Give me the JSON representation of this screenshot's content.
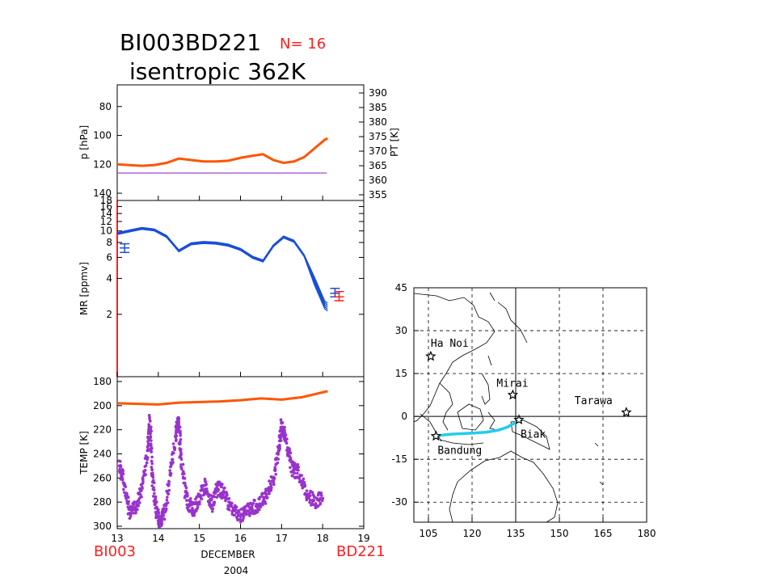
{
  "header": {
    "title_line1": "BI003BD221",
    "n_label": "N= 16",
    "title_line2": "isentropic   362K"
  },
  "x_axis": {
    "ticks": [
      "13",
      "14",
      "15",
      "16",
      "17",
      "18",
      "19"
    ],
    "label_month": "DECEMBER",
    "label_year": "2004",
    "left_station": "BI003",
    "right_station": "BD221"
  },
  "colors": {
    "orange": "#ff5500",
    "purple": "#9933cc",
    "blue": "#1a4fd6",
    "red": "#ff2020",
    "cyan": "#22ccee"
  },
  "chart_data": [
    {
      "type": "line",
      "ylabel": "p [hPa]",
      "ylabel_right": "PT [K]",
      "ylim": [
        145,
        65
      ],
      "yticks": [
        80,
        100,
        120,
        140
      ],
      "yticks_right": [
        355,
        360,
        365,
        370,
        375,
        380,
        385,
        390
      ],
      "xlim": [
        13,
        19
      ],
      "series": [
        {
          "color": "orange",
          "x": [
            13.0,
            13.3,
            13.6,
            13.9,
            14.2,
            14.5,
            14.8,
            15.1,
            15.4,
            15.7,
            16.0,
            16.3,
            16.55,
            16.8,
            17.05,
            17.3,
            17.55,
            17.8,
            18.05,
            18.12
          ],
          "y": [
            120,
            120.5,
            121,
            120.5,
            119,
            116,
            117,
            118,
            118,
            117.5,
            115.5,
            114,
            113,
            117,
            119,
            118,
            115,
            109,
            103,
            102
          ]
        },
        {
          "color": "purple",
          "x": [
            13.0,
            18.1
          ],
          "y": [
            126,
            126
          ]
        }
      ]
    },
    {
      "type": "line",
      "ylabel": "MR [ppmv]",
      "scale": "log",
      "ylim": [
        0.6,
        18
      ],
      "yticks": [
        2,
        4,
        6,
        8,
        10,
        12,
        14,
        16,
        18
      ],
      "xlim": [
        13,
        19
      ],
      "series": [
        {
          "color": "blue",
          "x": [
            13.0,
            13.3,
            13.6,
            13.9,
            14.2,
            14.5,
            14.8,
            15.1,
            15.4,
            15.7,
            16.0,
            16.3,
            16.55,
            16.8,
            17.05,
            17.3,
            17.55,
            17.8,
            18.05,
            18.12
          ],
          "y": [
            9.5,
            10.0,
            10.5,
            10.2,
            9.0,
            6.8,
            7.8,
            8.0,
            7.9,
            7.6,
            7.0,
            6.0,
            5.6,
            7.5,
            8.9,
            8.2,
            6.2,
            3.8,
            2.4,
            2.3
          ]
        }
      ],
      "error_bars": [
        {
          "x": 13.18,
          "y": 7.2,
          "lo": 6.6,
          "hi": 7.8,
          "color": "blue"
        },
        {
          "x": 18.3,
          "y": 3.0,
          "lo": 2.8,
          "hi": 3.3,
          "color": "blue"
        },
        {
          "x": 18.4,
          "y": 2.8,
          "lo": 2.6,
          "hi": 3.1,
          "color": "red"
        }
      ]
    },
    {
      "type": "scatter",
      "ylabel": "TEMP [K]",
      "ylim": [
        302,
        176
      ],
      "yticks": [
        180,
        200,
        220,
        240,
        260,
        280,
        300
      ],
      "xlim": [
        13,
        19
      ],
      "series": [
        {
          "color": "orange",
          "kind": "line",
          "x": [
            13.0,
            13.5,
            14.0,
            14.5,
            15.0,
            15.5,
            16.0,
            16.5,
            17.0,
            17.5,
            18.0,
            18.12
          ],
          "y": [
            198,
            198.5,
            199,
            197.5,
            197,
            196.5,
            195.5,
            194,
            195,
            193,
            189,
            188
          ]
        },
        {
          "color": "purple",
          "kind": "scatter",
          "x": [
            13.05,
            13.15,
            13.3,
            13.45,
            13.6,
            13.75,
            13.8,
            13.85,
            13.95,
            14.05,
            14.15,
            14.3,
            14.45,
            14.5,
            14.55,
            14.7,
            14.85,
            15.0,
            15.15,
            15.3,
            15.45,
            15.6,
            15.8,
            16.0,
            16.2,
            16.4,
            16.6,
            16.8,
            16.95,
            17.0,
            17.1,
            17.25,
            17.4,
            17.6,
            17.8,
            18.0
          ],
          "y": [
            250,
            262,
            290,
            284,
            270,
            235,
            212,
            258,
            288,
            296,
            289,
            256,
            218,
            214,
            245,
            279,
            287,
            276,
            266,
            283,
            268,
            273,
            286,
            291,
            286,
            283,
            276,
            261,
            232,
            216,
            228,
            252,
            255,
            272,
            280,
            276
          ]
        }
      ]
    },
    {
      "type": "map",
      "xlim": [
        100,
        180
      ],
      "ylim": [
        -37,
        45
      ],
      "xticks": [
        105,
        120,
        135,
        150,
        165,
        180
      ],
      "yticks": [
        45,
        30,
        15,
        0,
        -15,
        -30
      ],
      "stations": [
        {
          "name": "Ha Noi",
          "lon": 105.8,
          "lat": 21.0
        },
        {
          "name": "Mirai",
          "lon": 134.0,
          "lat": 7.5
        },
        {
          "name": "Tarawa",
          "lon": 173.0,
          "lat": 1.4
        },
        {
          "name": "Biak",
          "lon": 136.1,
          "lat": -1.2
        },
        {
          "name": "Bandung",
          "lon": 107.6,
          "lat": -6.9
        }
      ],
      "trajectory": {
        "color": "cyan",
        "lon": [
          107.6,
          110,
          113,
          117,
          121,
          125,
          129,
          132,
          134.5,
          136.1
        ],
        "lat": [
          -6.9,
          -6.5,
          -6.2,
          -6.0,
          -5.8,
          -5.5,
          -4.8,
          -3.8,
          -2.4,
          -1.2
        ]
      }
    }
  ]
}
